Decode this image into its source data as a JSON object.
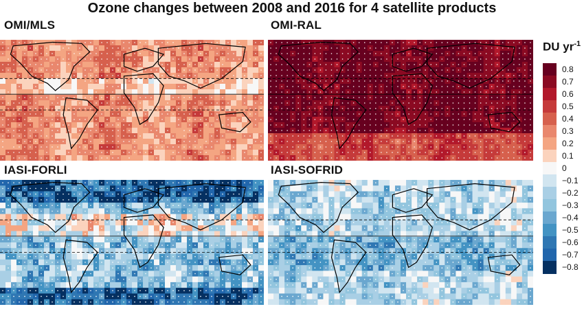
{
  "title": "Ozone changes between 2008 and 2016 for 4 satellite products",
  "chart_data": {
    "type": "heatmap",
    "title": "Ozone changes between 2008 and 2016 for 4 satellite products",
    "colorbar": {
      "label": "DU yr",
      "label_superscript": "-1",
      "range": [
        -0.8,
        0.8
      ],
      "ticks": [
        "0.8",
        "0.7",
        "0.6",
        "0.5",
        "0.4",
        "0.3",
        "0.2",
        "0.1",
        "0",
        "−0.1",
        "−0.2",
        "−0.3",
        "−0.4",
        "−0.5",
        "−0.6",
        "−0.7",
        "−0.8"
      ],
      "colors": [
        "#67001f",
        "#8b0a22",
        "#b2182b",
        "#c53a3a",
        "#d6604d",
        "#e9876d",
        "#f4a582",
        "#fbd3bd",
        "#f7f7f7",
        "#d1e5f0",
        "#a9cfe5",
        "#92c5de",
        "#6aa7cf",
        "#4393c3",
        "#2f77b3",
        "#2166ac",
        "#053061"
      ]
    },
    "panels": [
      {
        "name": "OMI/MLS",
        "mean_trend": 0.22,
        "spread": 0.14
      },
      {
        "name": "OMI-RAL",
        "mean_trend": 0.72,
        "spread": 0.1
      },
      {
        "name": "IASI-FORLI",
        "mean_trend": -0.34,
        "spread": 0.28
      },
      {
        "name": "IASI-SOFRID",
        "mean_trend": -0.24,
        "spread": 0.22
      }
    ]
  }
}
